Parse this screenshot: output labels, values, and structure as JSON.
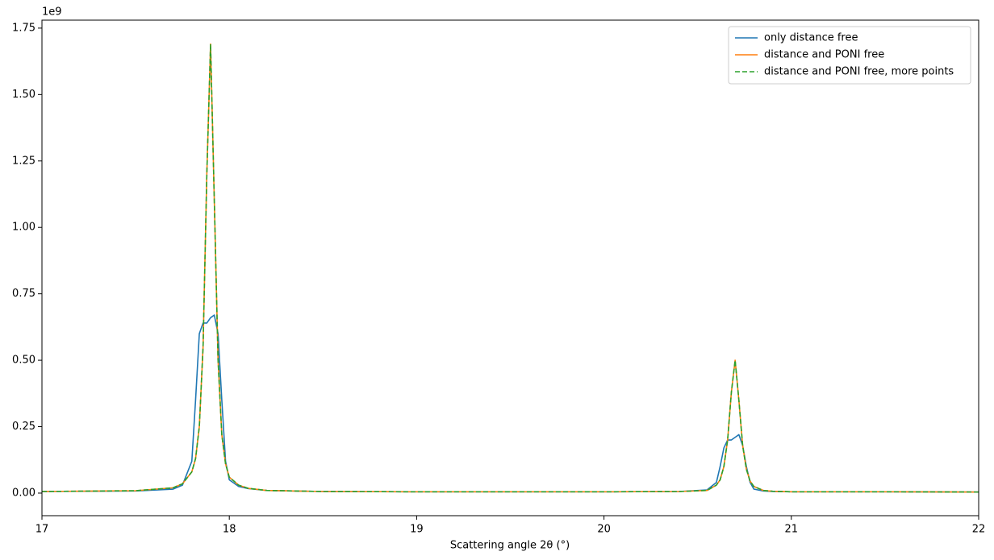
{
  "chart_data": {
    "type": "line",
    "x_label": "Scattering angle 2θ (°)",
    "y_offset_label": "1e9",
    "x": [
      17.0,
      17.5,
      17.7,
      17.75,
      17.8,
      17.82,
      17.84,
      17.86,
      17.88,
      17.9,
      17.92,
      17.94,
      17.96,
      17.98,
      18.0,
      18.05,
      18.1,
      18.2,
      18.5,
      19,
      19.5,
      20,
      20.4,
      20.55,
      20.6,
      20.62,
      20.64,
      20.66,
      20.68,
      20.7,
      20.72,
      20.74,
      20.76,
      20.78,
      20.8,
      20.85,
      20.9,
      21,
      21.5,
      22
    ],
    "series": [
      {
        "name": "only distance free",
        "color": "#1f77b4",
        "linestyle": "solid",
        "values": [
          0.006,
          0.008,
          0.015,
          0.03,
          0.12,
          0.35,
          0.6,
          0.64,
          0.64,
          0.66,
          0.67,
          0.6,
          0.35,
          0.12,
          0.05,
          0.025,
          0.017,
          0.01,
          0.006,
          0.005,
          0.005,
          0.005,
          0.006,
          0.012,
          0.04,
          0.1,
          0.17,
          0.2,
          0.2,
          0.21,
          0.22,
          0.18,
          0.1,
          0.04,
          0.015,
          0.008,
          0.006,
          0.005,
          0.005,
          0.004
        ]
      },
      {
        "name": "distance and PONI free",
        "color": "#ff7f0e",
        "linestyle": "solid",
        "values": [
          0.006,
          0.009,
          0.02,
          0.035,
          0.08,
          0.13,
          0.25,
          0.55,
          1.2,
          1.69,
          1.1,
          0.5,
          0.22,
          0.11,
          0.06,
          0.03,
          0.018,
          0.01,
          0.006,
          0.005,
          0.005,
          0.005,
          0.006,
          0.01,
          0.03,
          0.05,
          0.1,
          0.2,
          0.38,
          0.5,
          0.35,
          0.18,
          0.09,
          0.045,
          0.025,
          0.01,
          0.007,
          0.005,
          0.005,
          0.004
        ]
      },
      {
        "name": "distance and PONI free, more points",
        "color": "#2ca02c",
        "linestyle": "dashed",
        "values": [
          0.006,
          0.009,
          0.02,
          0.035,
          0.08,
          0.13,
          0.25,
          0.55,
          1.2,
          1.69,
          1.1,
          0.5,
          0.22,
          0.11,
          0.06,
          0.03,
          0.018,
          0.01,
          0.006,
          0.005,
          0.005,
          0.005,
          0.006,
          0.01,
          0.03,
          0.05,
          0.1,
          0.2,
          0.38,
          0.5,
          0.35,
          0.18,
          0.09,
          0.045,
          0.025,
          0.01,
          0.007,
          0.005,
          0.005,
          0.004
        ]
      }
    ],
    "xlim": [
      17,
      22
    ],
    "xticks": [
      17,
      18,
      19,
      20,
      21,
      22
    ],
    "ylim": [
      -0.085,
      1.78
    ],
    "yticks": [
      {
        "value": 0,
        "label": "0.00"
      },
      0.25,
      {
        "value": 0.5,
        "label": "0.50"
      },
      0.75,
      {
        "value": 1,
        "label": "1.00"
      },
      1.25,
      {
        "value": 1.5,
        "label": "1.50"
      },
      1.75
    ],
    "legend": "upper right",
    "grid": false
  }
}
